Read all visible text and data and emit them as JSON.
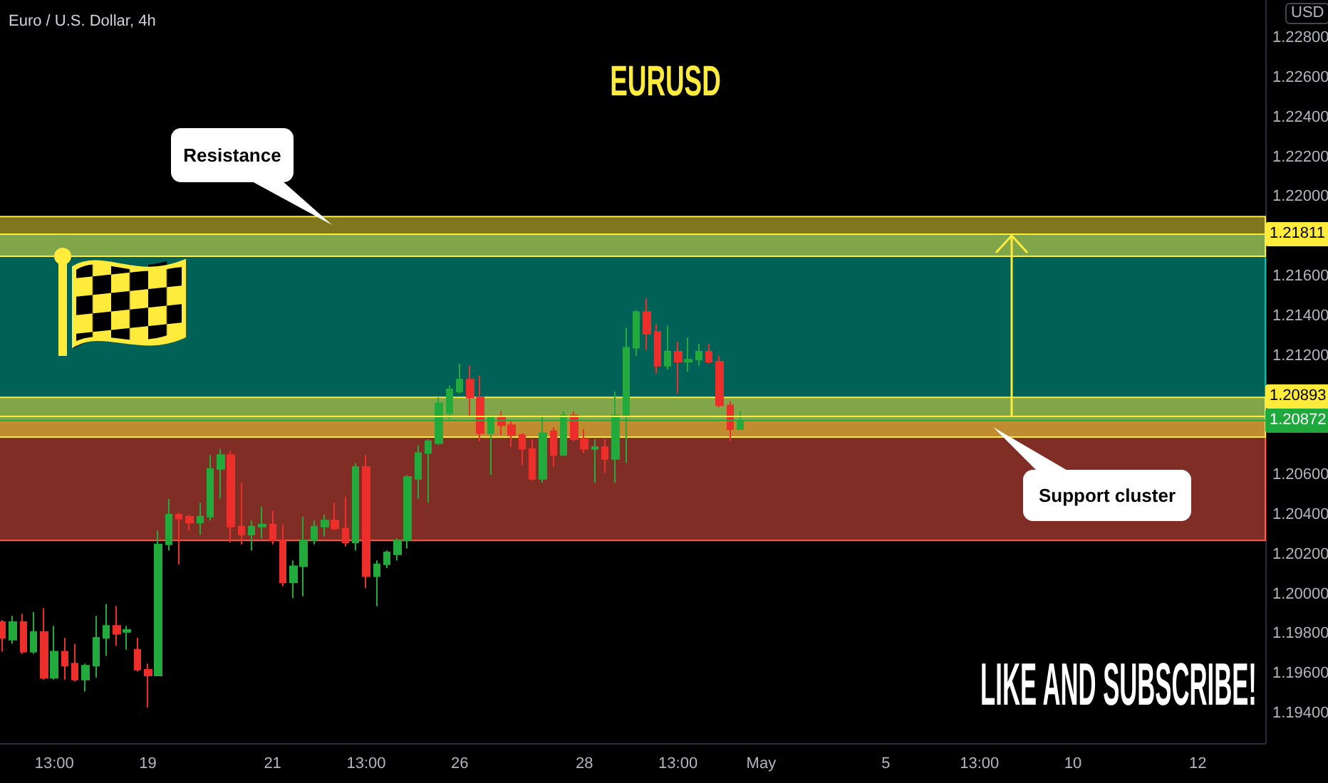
{
  "chart_data": {
    "type": "candlestick",
    "title": "EURUSD",
    "subtitle": "Euro / U.S. Dollar, 4h",
    "ylabel": "USD",
    "annotations": [
      "Resistance",
      "Support cluster",
      "LIKE AND SUBSCRIBE!"
    ],
    "categories": [
      null,
      null,
      null,
      null,
      null,
      "13:00",
      null,
      null,
      null,
      null,
      null,
      null,
      null,
      null,
      "19",
      null,
      null,
      null,
      null,
      null,
      null,
      null,
      null,
      null,
      null,
      null,
      "21",
      null,
      null,
      null,
      null,
      null,
      null,
      null,
      null,
      "13:00",
      null,
      null,
      null,
      null,
      null,
      null,
      null,
      null,
      "26",
      null,
      null,
      null,
      null,
      null,
      null,
      null,
      null,
      null,
      null,
      null,
      "28",
      null,
      null,
      null,
      null,
      null,
      null,
      null,
      null,
      "13:00",
      null,
      null,
      null,
      null,
      null,
      null,
      null,
      "May",
      null,
      null,
      null,
      null,
      null,
      null,
      null,
      null,
      null,
      null,
      null,
      "5",
      null,
      null,
      null,
      null,
      null,
      null,
      null,
      null,
      "13:00",
      null,
      null,
      null,
      null,
      null,
      null,
      null,
      null,
      "10",
      null,
      null,
      null,
      null,
      null,
      null,
      null,
      null,
      null,
      null,
      null,
      "12",
      null,
      null,
      null,
      null,
      null,
      null
    ],
    "ohlc": [
      [
        1.1986,
        1.1987,
        1.1971,
        1.1978
      ],
      [
        1.1977,
        1.1989,
        1.1975,
        1.1986
      ],
      [
        1.1986,
        1.199,
        1.197,
        1.1971
      ],
      [
        1.1971,
        1.1991,
        1.197,
        1.1981
      ],
      [
        1.1981,
        1.1993,
        1.1957,
        1.1958
      ],
      [
        1.1958,
        1.1984,
        1.1957,
        1.1971
      ],
      [
        1.1971,
        1.1978,
        1.1957,
        1.1964
      ],
      [
        1.1965,
        1.1975,
        1.1956,
        1.1957
      ],
      [
        1.1957,
        1.1965,
        1.1951,
        1.1964
      ],
      [
        1.1964,
        1.1989,
        1.1958,
        1.1978
      ],
      [
        1.1978,
        1.1995,
        1.1969,
        1.1984
      ],
      [
        1.1984,
        1.1994,
        1.1974,
        1.198
      ],
      [
        1.1981,
        1.1984,
        1.1972,
        1.1982
      ],
      [
        1.1972,
        1.1978,
        1.1961,
        1.1962
      ],
      [
        1.1962,
        1.1965,
        1.1943,
        1.1959
      ],
      [
        1.1959,
        1.2032,
        1.1959,
        1.2025
      ],
      [
        1.2025,
        1.2048,
        1.2022,
        1.204
      ],
      [
        1.204,
        1.2041,
        1.2015,
        1.2038
      ],
      [
        1.2039,
        1.204,
        1.2032,
        1.2036
      ],
      [
        1.2036,
        1.2046,
        1.203,
        1.2039
      ],
      [
        1.2039,
        1.207,
        1.2037,
        1.2063
      ],
      [
        1.2063,
        1.2073,
        1.2048,
        1.207
      ],
      [
        1.207,
        1.2072,
        1.2026,
        1.2034
      ],
      [
        1.2034,
        1.2056,
        1.2025,
        1.203
      ],
      [
        1.203,
        1.2037,
        1.2022,
        1.2034
      ],
      [
        1.2034,
        1.2044,
        1.2028,
        1.2035
      ],
      [
        1.2035,
        1.2042,
        1.2025,
        1.2027
      ],
      [
        1.2027,
        1.2035,
        1.2004,
        1.2006
      ],
      [
        1.2006,
        1.2017,
        1.1998,
        1.2014
      ],
      [
        1.2014,
        1.2039,
        1.1999,
        1.2027
      ],
      [
        1.2027,
        1.2037,
        1.2025,
        1.2034
      ],
      [
        1.2034,
        1.204,
        1.2029,
        1.2037
      ],
      [
        1.2037,
        1.2046,
        1.2032,
        1.2033
      ],
      [
        1.2033,
        1.2049,
        1.2024,
        1.2026
      ],
      [
        1.2026,
        1.2066,
        1.2022,
        1.2064
      ],
      [
        1.2064,
        1.207,
        1.2003,
        1.2009
      ],
      [
        1.2009,
        1.2017,
        1.1994,
        1.2015
      ],
      [
        1.2015,
        1.2022,
        1.2013,
        1.2021
      ],
      [
        1.202,
        1.2028,
        1.2017,
        1.2027
      ],
      [
        1.2027,
        1.206,
        1.2023,
        1.2059
      ],
      [
        1.2058,
        1.2075,
        1.2048,
        1.2071
      ],
      [
        1.2071,
        1.2078,
        1.2046,
        1.2077
      ],
      [
        1.2076,
        1.2099,
        1.2075,
        1.2096
      ],
      [
        1.2091,
        1.2105,
        1.2088,
        1.2103
      ],
      [
        1.2102,
        1.2116,
        1.2101,
        1.2108
      ],
      [
        1.2108,
        1.2115,
        1.2089,
        1.2099
      ],
      [
        1.2099,
        1.211,
        1.2077,
        1.2081
      ],
      [
        1.2081,
        1.209,
        1.206,
        1.2089
      ],
      [
        1.2089,
        1.2092,
        1.208,
        1.2085
      ],
      [
        1.2085,
        1.2087,
        1.2074,
        1.208
      ],
      [
        1.208,
        1.2081,
        1.2065,
        1.2073
      ],
      [
        1.2073,
        1.2078,
        1.2057,
        1.2058
      ],
      [
        1.2058,
        1.209,
        1.2056,
        1.2081
      ],
      [
        1.2082,
        1.2084,
        1.2064,
        1.207
      ],
      [
        1.207,
        1.2092,
        1.207,
        1.209
      ],
      [
        1.209,
        1.2092,
        1.2077,
        1.2078
      ],
      [
        1.2078,
        1.2083,
        1.2071,
        1.2073
      ],
      [
        1.2073,
        1.2078,
        1.2056,
        1.2074
      ],
      [
        1.2074,
        1.2078,
        1.2061,
        1.2068
      ],
      [
        1.2068,
        1.2102,
        1.2056,
        1.209
      ],
      [
        1.209,
        1.2134,
        1.2066,
        1.2124
      ],
      [
        1.2124,
        1.2143,
        1.212,
        1.2142
      ],
      [
        1.2142,
        1.2149,
        1.2123,
        1.2131
      ],
      [
        1.2132,
        1.2136,
        1.2111,
        1.2115
      ],
      [
        1.2115,
        1.2135,
        1.2113,
        1.2122
      ],
      [
        1.2122,
        1.2127,
        1.2101,
        1.2117
      ],
      [
        1.2117,
        1.2129,
        1.2112,
        1.2118
      ],
      [
        1.2118,
        1.2126,
        1.2115,
        1.2122
      ],
      [
        1.2122,
        1.2126,
        1.2116,
        1.2117
      ],
      [
        1.2117,
        1.212,
        1.2094,
        1.2095
      ],
      [
        1.2095,
        1.2097,
        1.2077,
        1.2083
      ],
      [
        1.2083,
        1.2092,
        1.2083,
        1.2087
      ],
      null,
      null,
      null,
      null,
      null,
      null,
      null,
      null,
      null,
      null,
      null,
      null,
      null,
      null,
      null,
      null,
      null,
      null,
      null,
      null,
      null,
      null,
      null,
      null,
      null,
      null,
      null,
      null,
      null,
      null,
      null,
      null,
      null,
      null,
      null,
      null,
      null,
      null,
      null,
      null,
      null,
      null,
      null,
      null,
      null,
      null,
      null,
      null,
      null,
      null
    ],
    "colors": [
      "#ec2f2a",
      "#22ab3c",
      "#ec2f2a",
      "#22ab3c",
      "#ec2f2a",
      "#22ab3c",
      "#ec2f2a",
      "#ec2f2a",
      "#22ab3c",
      "#22ab3c",
      "#22ab3c",
      "#ec2f2a",
      "#22ab3c",
      "#ec2f2a",
      "#ec2f2a",
      "#22ab3c",
      "#22ab3c",
      "#ec2f2a",
      "#ec2f2a",
      "#22ab3c",
      "#22ab3c",
      "#22ab3c",
      "#ec2f2a",
      "#ec2f2a",
      "#22ab3c",
      "#22ab3c",
      "#ec2f2a",
      "#ec2f2a",
      "#22ab3c",
      "#22ab3c",
      "#22ab3c",
      "#22ab3c",
      "#ec2f2a",
      "#ec2f2a",
      "#22ab3c",
      "#ec2f2a",
      "#22ab3c",
      "#22ab3c",
      "#22ab3c",
      "#22ab3c",
      "#22ab3c",
      "#22ab3c",
      "#22ab3c",
      "#22ab3c",
      "#22ab3c",
      "#ec2f2a",
      "#ec2f2a",
      "#22ab3c",
      "#ec2f2a",
      "#ec2f2a",
      "#ec2f2a",
      "#ec2f2a",
      "#22ab3c",
      "#ec2f2a",
      "#22ab3c",
      "#ec2f2a",
      "#ec2f2a",
      "#22ab3c",
      "#ec2f2a",
      "#22ab3c",
      "#22ab3c",
      "#22ab3c",
      "#ec2f2a",
      "#ec2f2a",
      "#22ab3c",
      "#ec2f2a",
      "#22ab3c",
      "#22ab3c",
      "#ec2f2a",
      "#ec2f2a",
      "#ec2f2a",
      "#22ab3c",
      null,
      null,
      null,
      null,
      null,
      null,
      null,
      null,
      null,
      null,
      null,
      null,
      null,
      null,
      null,
      null,
      null,
      null,
      null,
      null,
      null,
      null,
      null,
      null,
      null,
      null,
      null,
      null,
      null,
      null,
      null,
      null,
      null,
      null,
      null,
      null,
      null,
      null,
      null,
      null,
      null,
      null,
      null,
      null,
      null,
      null,
      null,
      null,
      null,
      null
    ],
    "ylim": [
      1.1925,
      1.2299
    ],
    "yticks": [
      {
        "value": 1.194,
        "label": "1.19400"
      },
      {
        "value": 1.196,
        "label": "1.19600"
      },
      {
        "value": 1.198,
        "label": "1.19800"
      },
      {
        "value": 1.2,
        "label": "1.20000"
      },
      {
        "value": 1.202,
        "label": "1.20200"
      },
      {
        "value": 1.204,
        "label": "1.20400"
      },
      {
        "value": 1.206,
        "label": "1.20600"
      },
      {
        "value": 1.212,
        "label": "1.21200"
      },
      {
        "value": 1.214,
        "label": "1.21400"
      },
      {
        "value": 1.216,
        "label": "1.21600"
      },
      {
        "value": 1.22,
        "label": "1.22000"
      },
      {
        "value": 1.222,
        "label": "1.22200"
      },
      {
        "value": 1.224,
        "label": "1.22400"
      },
      {
        "value": 1.226,
        "label": "1.22600"
      },
      {
        "value": 1.228,
        "label": "1.22800"
      }
    ],
    "grid": false,
    "bands": [
      {
        "axis": "y",
        "from": 1.20872,
        "to": 1.21811,
        "color": "#00c2ad"
      },
      {
        "axis": "y",
        "from": 1.2027,
        "to": 1.20872,
        "color": "#ff5a4a"
      },
      {
        "axis": "y",
        "from": 1.217,
        "to": 1.219,
        "color": "#ffeb3b"
      },
      {
        "axis": "y",
        "from": 1.2079,
        "to": 1.2099,
        "color": "#ffeb3b"
      }
    ],
    "ref_lines": [
      {
        "axis": "y",
        "value": 1.21811,
        "label": "1.21811",
        "color": "#ffeb3b"
      },
      {
        "axis": "y",
        "value": 1.20893,
        "label": "1.20893",
        "color": "#ffeb3b"
      },
      {
        "axis": "y",
        "value": 1.20872,
        "label": "1.20872",
        "color": "#1fa83c"
      }
    ]
  }
}
